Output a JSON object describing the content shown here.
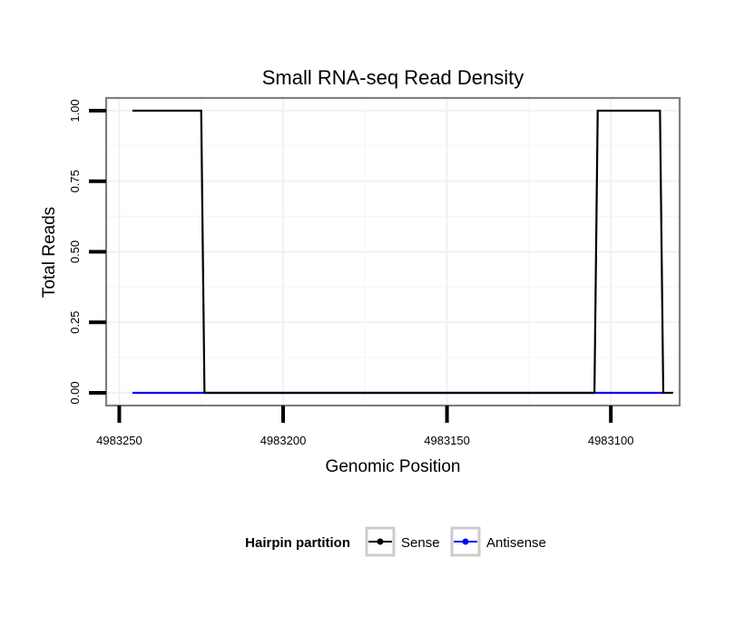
{
  "chart_data": {
    "type": "line",
    "title": "Small RNA-seq Read Density",
    "xlabel": "Genomic Position",
    "ylabel": "Total Reads",
    "x_reversed": true,
    "xlim": [
      4983254,
      4983079
    ],
    "ylim": [
      -0.045,
      1.045
    ],
    "x_ticks": [
      4983250,
      4983200,
      4983150,
      4983100
    ],
    "x_tick_labels": [
      "4983250",
      "4983200",
      "4983150",
      "4983100"
    ],
    "y_ticks": [
      0,
      0.25,
      0.5,
      0.75,
      1.0
    ],
    "y_tick_labels": [
      "0.00",
      "0.25",
      "0.50",
      "0.75",
      "1.00"
    ],
    "grid": true,
    "legend": {
      "title": "Hairpin partition",
      "position": "bottom",
      "entries": [
        {
          "label": "Sense",
          "color": "#000000"
        },
        {
          "label": "Antisense",
          "color": "#0000ff"
        }
      ]
    },
    "series": [
      {
        "name": "Sense",
        "color": "#000000",
        "points": [
          [
            4983246,
            1
          ],
          [
            4983225,
            1
          ],
          [
            4983224,
            0
          ],
          [
            4983105,
            0
          ],
          [
            4983104,
            1
          ],
          [
            4983085,
            1
          ],
          [
            4983084,
            0
          ],
          [
            4983081,
            0
          ]
        ]
      },
      {
        "name": "Antisense",
        "color": "#0000ff",
        "points": [
          [
            4983246,
            0
          ],
          [
            4983224,
            0
          ],
          [
            4983105,
            0
          ],
          [
            4983084,
            0
          ]
        ]
      }
    ]
  }
}
